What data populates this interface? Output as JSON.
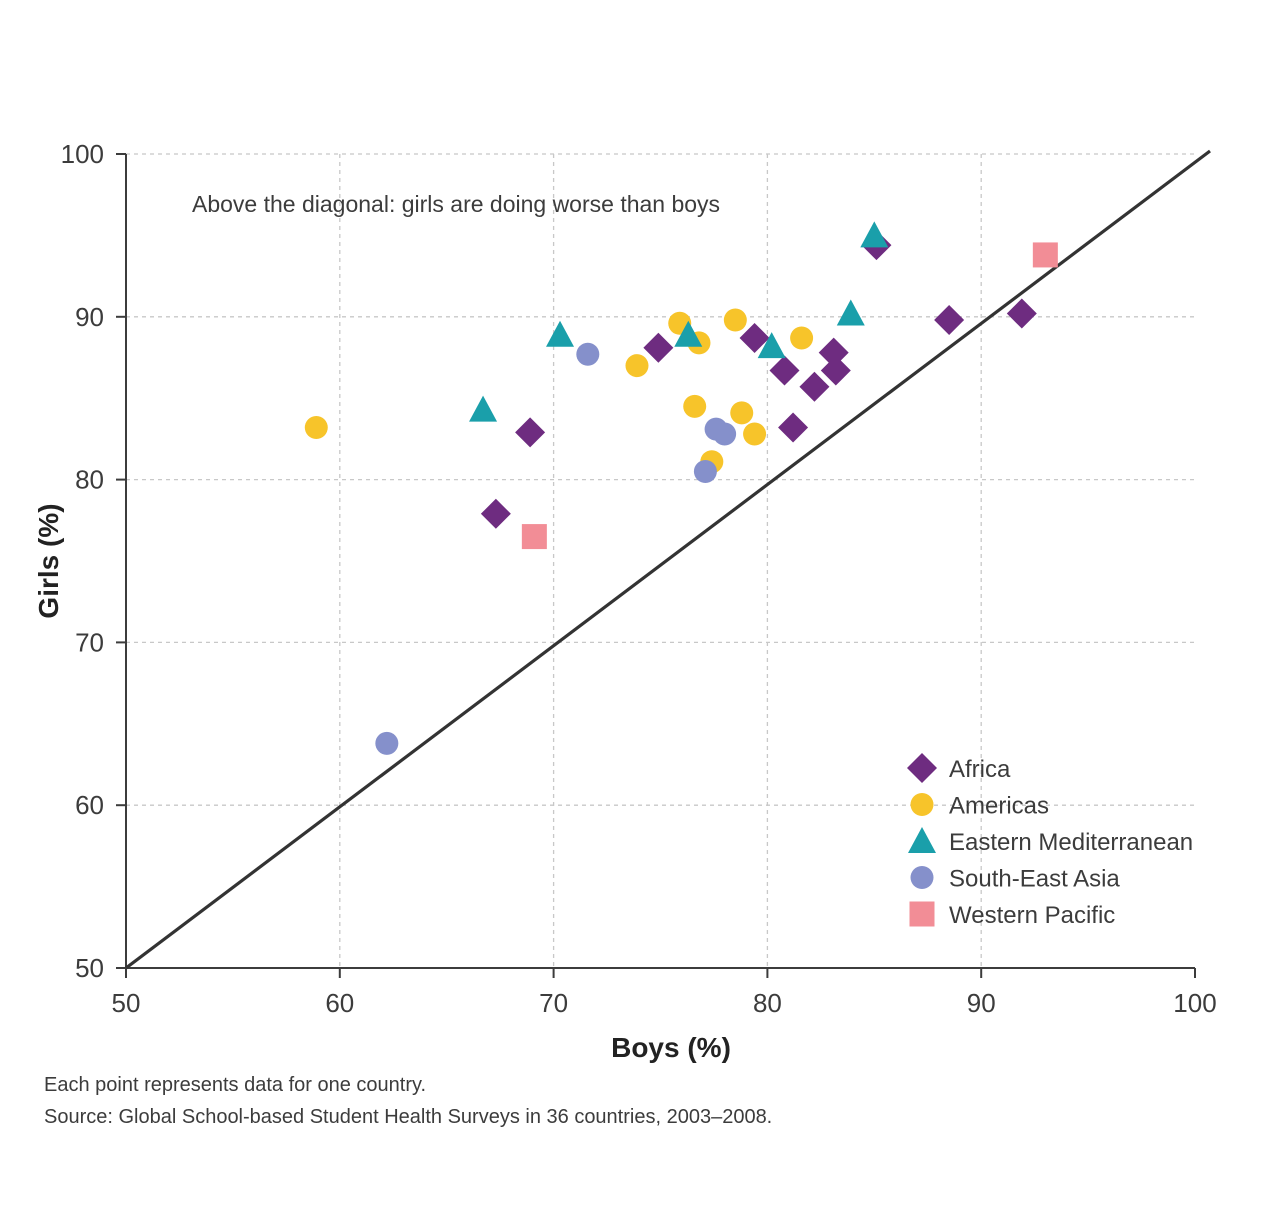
{
  "chart_data": {
    "type": "scatter",
    "xlabel": "Boys (%)",
    "ylabel": "Girls (%)",
    "xlim": [
      50,
      100
    ],
    "ylim": [
      50,
      100
    ],
    "xticks": [
      "50",
      "60",
      "70",
      "80",
      "90",
      "100"
    ],
    "yticks": [
      "50",
      "60",
      "70",
      "80",
      "90",
      "100"
    ],
    "grid": true,
    "diagonal": [
      [
        50,
        50
      ],
      [
        100,
        100
      ]
    ],
    "annotation": "Above the diagonal: girls are doing worse than boys",
    "legend_position": "bottom-right",
    "series": [
      {
        "name": "Africa",
        "marker": "diamond",
        "color": "#6e2c80",
        "points": [
          [
            67.3,
            77.9
          ],
          [
            68.9,
            82.9
          ],
          [
            74.9,
            88.1
          ],
          [
            79.4,
            88.7
          ],
          [
            80.8,
            86.7
          ],
          [
            81.2,
            83.2
          ],
          [
            82.2,
            85.7
          ],
          [
            83.1,
            87.8
          ],
          [
            83.2,
            86.7
          ],
          [
            85.1,
            94.4
          ],
          [
            88.5,
            89.8
          ],
          [
            91.9,
            90.2
          ]
        ]
      },
      {
        "name": "Americas",
        "marker": "circle",
        "color": "#f7c42a",
        "points": [
          [
            58.9,
            83.2
          ],
          [
            73.9,
            87.0
          ],
          [
            75.9,
            89.6
          ],
          [
            76.6,
            84.5
          ],
          [
            76.8,
            88.4
          ],
          [
            77.4,
            81.1
          ],
          [
            78.5,
            89.8
          ],
          [
            78.8,
            84.1
          ],
          [
            79.4,
            82.8
          ],
          [
            81.6,
            88.7
          ]
        ]
      },
      {
        "name": "Eastern Mediterranean",
        "marker": "triangle",
        "color": "#1a9faa",
        "points": [
          [
            66.7,
            84.3
          ],
          [
            70.3,
            88.9
          ],
          [
            76.3,
            88.9
          ],
          [
            80.2,
            88.2
          ],
          [
            83.9,
            90.2
          ],
          [
            85.0,
            95.0
          ]
        ]
      },
      {
        "name": "South-East Asia",
        "marker": "circle",
        "color": "#8590cb",
        "points": [
          [
            62.2,
            63.8
          ],
          [
            71.6,
            87.7
          ],
          [
            77.1,
            80.5
          ],
          [
            77.6,
            83.1
          ],
          [
            78.0,
            82.8
          ]
        ]
      },
      {
        "name": "Western Pacific",
        "marker": "square",
        "color": "#f28d96",
        "points": [
          [
            69.1,
            76.5
          ],
          [
            93.0,
            93.8
          ]
        ]
      }
    ]
  },
  "notes": {
    "line1": "Each point represents data for one country.",
    "line2": "Source: Global School-based Student Health Surveys in 36 countries, 2003–2008."
  }
}
